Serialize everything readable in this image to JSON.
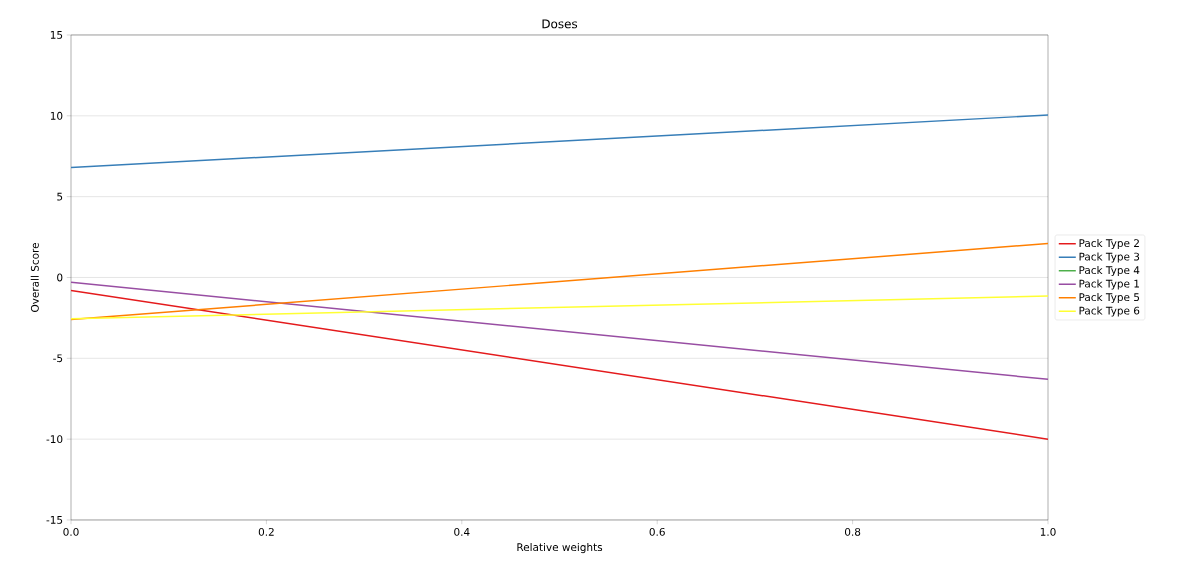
{
  "chart_data": {
    "type": "line",
    "title": "Doses",
    "xlabel": "Relative weights",
    "ylabel": "Overall Score",
    "x": [
      0,
      1
    ],
    "xlim": [
      0,
      1
    ],
    "ylim": [
      -15,
      15
    ],
    "xticks": [
      {
        "value": 0,
        "label": "0.0"
      },
      0.2,
      0.4,
      0.6,
      0.8,
      {
        "value": 1,
        "label": "1.0"
      }
    ],
    "yticks": [
      -15,
      -10,
      -5,
      0,
      5,
      10,
      15
    ],
    "grid": "y",
    "legend": "right",
    "line_style": "solid",
    "marker": "none",
    "series": [
      {
        "name": "Pack Type 2",
        "color": "#e41a1c",
        "values": [
          -0.8,
          -10.0
        ]
      },
      {
        "name": "Pack Type 3",
        "color": "#377eb8",
        "values": [
          6.8,
          10.05
        ]
      },
      {
        "name": "Pack Type 4",
        "color": "#4daf4a",
        "values": [
          null,
          null
        ]
      },
      {
        "name": "Pack Type 1",
        "color": "#984ea3",
        "values": [
          -0.3,
          -6.3
        ]
      },
      {
        "name": "Pack Type 5",
        "color": "#ff7f00",
        "values": [
          -2.6,
          2.1
        ]
      },
      {
        "name": "Pack Type 6",
        "color": "#ffff33",
        "values": [
          -2.55,
          -1.15
        ]
      }
    ]
  }
}
